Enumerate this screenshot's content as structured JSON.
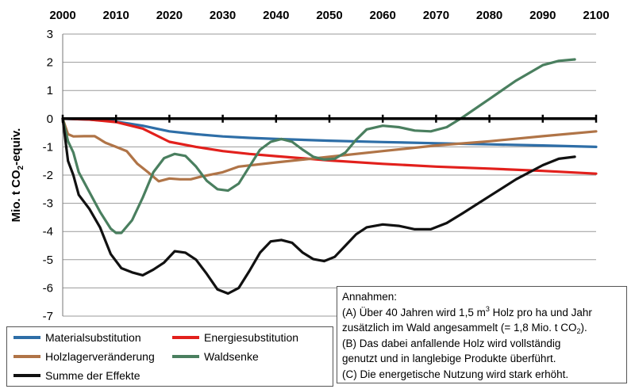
{
  "chart_data": {
    "type": "line",
    "title": "",
    "xlabel": "",
    "ylabel_parts": [
      "Mio. t CO",
      "2",
      "-equiv."
    ],
    "xlim": [
      2000,
      2100
    ],
    "ylim": [
      -7,
      3
    ],
    "x_ticks": [
      "2000",
      "2010",
      "2020",
      "2030",
      "2040",
      "2050",
      "2060",
      "2070",
      "2080",
      "2090",
      "2100"
    ],
    "y_ticks": [
      "3",
      "2",
      "1",
      "0",
      "-1",
      "-2",
      "-3",
      "-4",
      "-5",
      "-6",
      "-7"
    ],
    "grid": "horizontal",
    "legend_position": "bottom-left",
    "series": [
      {
        "name": "Materialsubstitution",
        "color": "#2e6ea7",
        "points": [
          [
            2000,
            0
          ],
          [
            2005,
            -0.03
          ],
          [
            2010,
            -0.1
          ],
          [
            2015,
            -0.25
          ],
          [
            2020,
            -0.45
          ],
          [
            2025,
            -0.55
          ],
          [
            2030,
            -0.63
          ],
          [
            2035,
            -0.68
          ],
          [
            2040,
            -0.72
          ],
          [
            2050,
            -0.78
          ],
          [
            2060,
            -0.83
          ],
          [
            2070,
            -0.87
          ],
          [
            2080,
            -0.91
          ],
          [
            2090,
            -0.95
          ],
          [
            2100,
            -1.0
          ]
        ]
      },
      {
        "name": "Energiesubstitution",
        "color": "#e2201c",
        "points": [
          [
            2000,
            0
          ],
          [
            2005,
            -0.03
          ],
          [
            2010,
            -0.12
          ],
          [
            2015,
            -0.35
          ],
          [
            2020,
            -0.82
          ],
          [
            2025,
            -1.0
          ],
          [
            2030,
            -1.15
          ],
          [
            2035,
            -1.25
          ],
          [
            2040,
            -1.33
          ],
          [
            2050,
            -1.48
          ],
          [
            2060,
            -1.6
          ],
          [
            2070,
            -1.7
          ],
          [
            2080,
            -1.77
          ],
          [
            2090,
            -1.85
          ],
          [
            2100,
            -1.95
          ]
        ]
      },
      {
        "name": "Holzlagerveränderung",
        "color": "#b07447",
        "points": [
          [
            2000,
            0
          ],
          [
            2001,
            -0.55
          ],
          [
            2002,
            -0.63
          ],
          [
            2004,
            -0.62
          ],
          [
            2006,
            -0.62
          ],
          [
            2008,
            -0.85
          ],
          [
            2010,
            -1.0
          ],
          [
            2012,
            -1.15
          ],
          [
            2014,
            -1.6
          ],
          [
            2016,
            -1.9
          ],
          [
            2018,
            -2.22
          ],
          [
            2020,
            -2.12
          ],
          [
            2022,
            -2.15
          ],
          [
            2024,
            -2.15
          ],
          [
            2026,
            -2.05
          ],
          [
            2030,
            -1.9
          ],
          [
            2033,
            -1.7
          ],
          [
            2040,
            -1.55
          ],
          [
            2050,
            -1.35
          ],
          [
            2060,
            -1.15
          ],
          [
            2070,
            -0.95
          ],
          [
            2080,
            -0.8
          ],
          [
            2090,
            -0.62
          ],
          [
            2100,
            -0.45
          ]
        ]
      },
      {
        "name": "Waldsenke",
        "color": "#4a7f5f",
        "points": [
          [
            2000,
            0
          ],
          [
            2001,
            -0.8
          ],
          [
            2002,
            -1.2
          ],
          [
            2003,
            -1.9
          ],
          [
            2005,
            -2.6
          ],
          [
            2007,
            -3.3
          ],
          [
            2009,
            -3.9
          ],
          [
            2010,
            -4.05
          ],
          [
            2011,
            -4.05
          ],
          [
            2013,
            -3.6
          ],
          [
            2015,
            -2.8
          ],
          [
            2017,
            -1.9
          ],
          [
            2019,
            -1.4
          ],
          [
            2021,
            -1.25
          ],
          [
            2023,
            -1.32
          ],
          [
            2025,
            -1.7
          ],
          [
            2027,
            -2.2
          ],
          [
            2029,
            -2.5
          ],
          [
            2031,
            -2.55
          ],
          [
            2033,
            -2.3
          ],
          [
            2035,
            -1.7
          ],
          [
            2037,
            -1.1
          ],
          [
            2039,
            -0.82
          ],
          [
            2041,
            -0.72
          ],
          [
            2043,
            -0.82
          ],
          [
            2045,
            -1.1
          ],
          [
            2047,
            -1.35
          ],
          [
            2049,
            -1.45
          ],
          [
            2051,
            -1.42
          ],
          [
            2053,
            -1.2
          ],
          [
            2055,
            -0.75
          ],
          [
            2057,
            -0.38
          ],
          [
            2060,
            -0.25
          ],
          [
            2063,
            -0.3
          ],
          [
            2066,
            -0.42
          ],
          [
            2069,
            -0.45
          ],
          [
            2072,
            -0.3
          ],
          [
            2075,
            0.05
          ],
          [
            2080,
            0.7
          ],
          [
            2085,
            1.35
          ],
          [
            2090,
            1.9
          ],
          [
            2093,
            2.05
          ],
          [
            2096,
            2.1
          ]
        ]
      },
      {
        "name": "Summe der Effekte",
        "color": "#111111",
        "points": [
          [
            2000,
            0
          ],
          [
            2001,
            -1.5
          ],
          [
            2002,
            -2.0
          ],
          [
            2003,
            -2.7
          ],
          [
            2005,
            -3.2
          ],
          [
            2007,
            -3.85
          ],
          [
            2009,
            -4.8
          ],
          [
            2011,
            -5.3
          ],
          [
            2013,
            -5.45
          ],
          [
            2015,
            -5.55
          ],
          [
            2017,
            -5.35
          ],
          [
            2019,
            -5.1
          ],
          [
            2021,
            -4.7
          ],
          [
            2023,
            -4.75
          ],
          [
            2025,
            -5.0
          ],
          [
            2027,
            -5.5
          ],
          [
            2029,
            -6.05
          ],
          [
            2031,
            -6.2
          ],
          [
            2033,
            -6.0
          ],
          [
            2035,
            -5.4
          ],
          [
            2037,
            -4.75
          ],
          [
            2039,
            -4.35
          ],
          [
            2041,
            -4.3
          ],
          [
            2043,
            -4.4
          ],
          [
            2045,
            -4.75
          ],
          [
            2047,
            -4.98
          ],
          [
            2049,
            -5.05
          ],
          [
            2051,
            -4.9
          ],
          [
            2053,
            -4.5
          ],
          [
            2055,
            -4.1
          ],
          [
            2057,
            -3.85
          ],
          [
            2060,
            -3.75
          ],
          [
            2063,
            -3.8
          ],
          [
            2066,
            -3.92
          ],
          [
            2069,
            -3.92
          ],
          [
            2072,
            -3.7
          ],
          [
            2075,
            -3.35
          ],
          [
            2080,
            -2.75
          ],
          [
            2085,
            -2.15
          ],
          [
            2090,
            -1.65
          ],
          [
            2093,
            -1.42
          ],
          [
            2096,
            -1.35
          ]
        ]
      }
    ]
  },
  "legend": [
    {
      "name": "Materialsubstitution",
      "color": "#2e6ea7"
    },
    {
      "name": "Energiesubstitution",
      "color": "#e2201c"
    },
    {
      "name": "Holzlagerveränderung",
      "color": "#b07447"
    },
    {
      "name": "Waldsenke",
      "color": "#4a7f5f"
    },
    {
      "name": "Summe der Effekte",
      "color": "#111111"
    }
  ],
  "notes": {
    "title": "Annahmen:",
    "a_pre": "(A) Über 40 Jahren wird 1,5 m",
    "a_sup": "3",
    "a_post": " Holz pro ha und Jahr",
    "a2_pre": "zusätzlich im Wald angesammelt (= 1,8 Mio. t CO",
    "a2_sub": "2",
    "a2_post": ").",
    "b1": "(B) Das dabei anfallende Holz wird vollständig",
    "b2": "genutzt und in langlebige Produkte überführt.",
    "c1": "(C) Die energetische Nutzung wird stark erhöht."
  }
}
